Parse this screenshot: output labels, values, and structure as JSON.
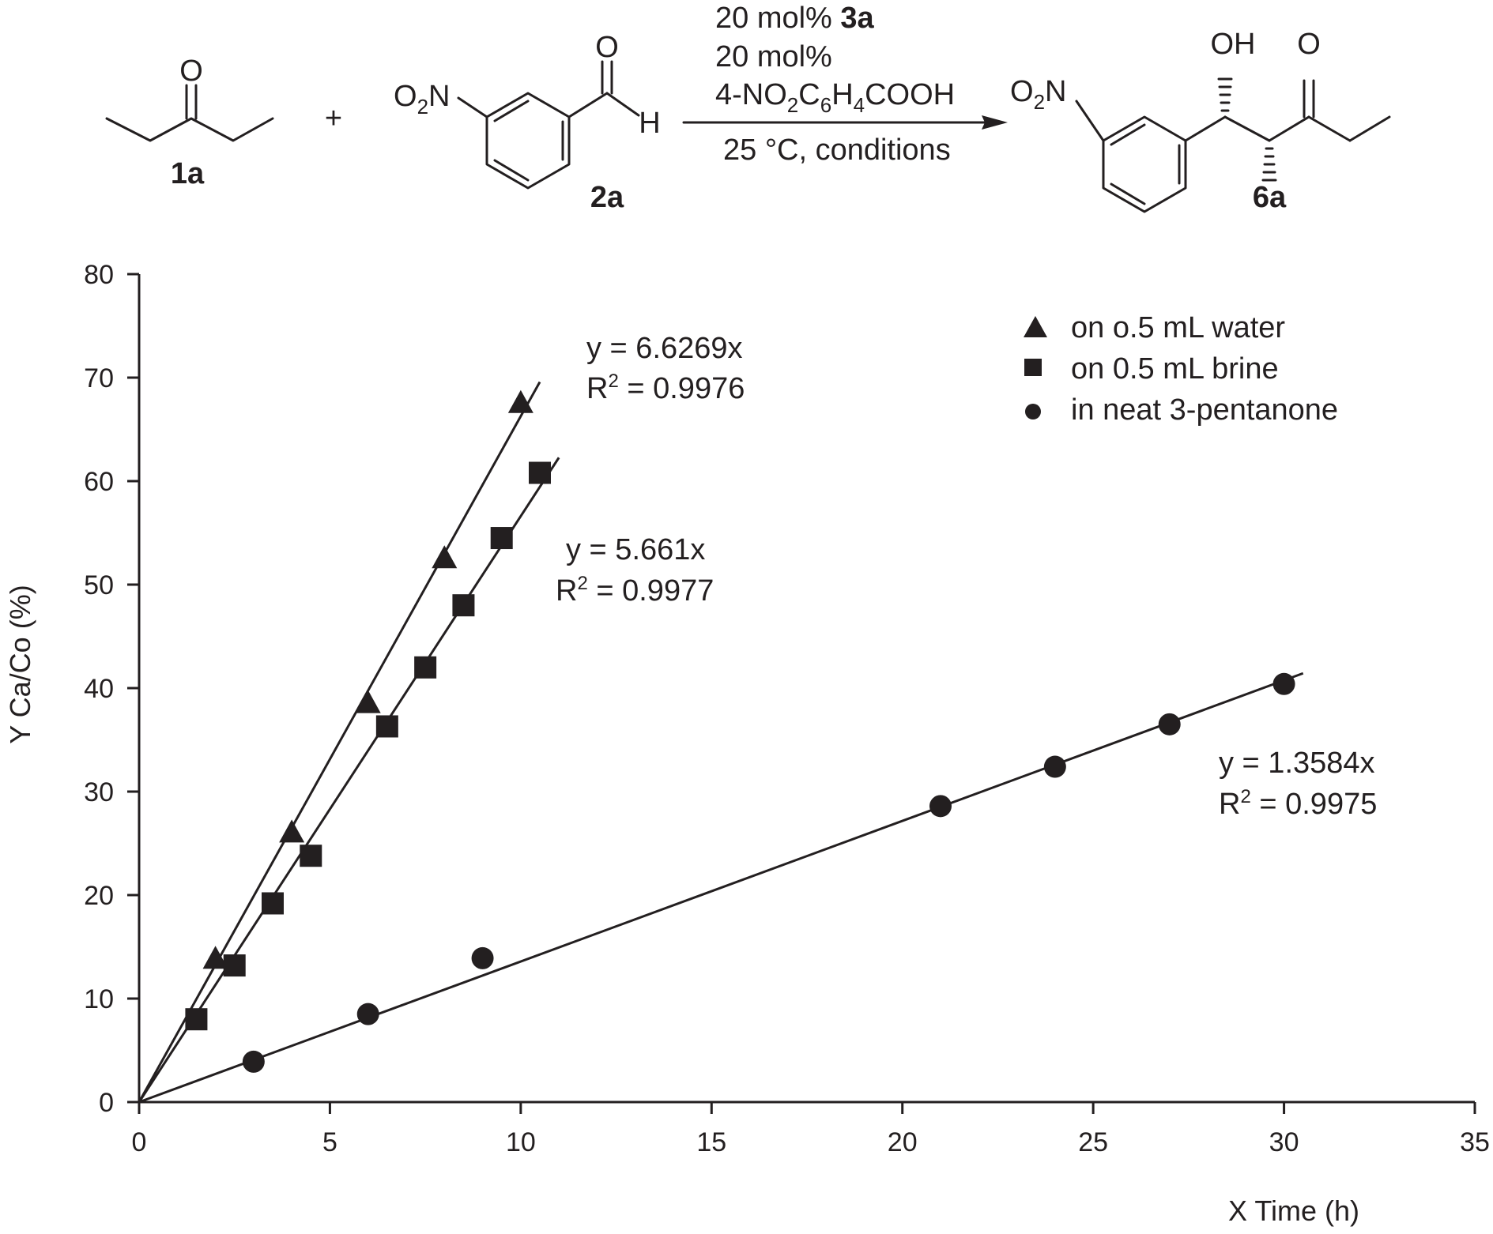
{
  "scheme": {
    "reactant1": {
      "carbonyl_atom": "O",
      "label": "1a"
    },
    "plus": "+",
    "reactant2": {
      "nitro": "O",
      "nitro_sub": "2",
      "nitro_n": "N",
      "carbonyl_atom": "O",
      "hydrogen": "H",
      "label": "2a"
    },
    "conditions": {
      "line1_prefix": "20 mol% ",
      "line1_bold": "3a",
      "line2": "20 mol%",
      "line3_parts": [
        "4-NO",
        "2",
        "C",
        "6",
        "H",
        "4",
        "COOH"
      ],
      "line4": "25 °C, conditions"
    },
    "product": {
      "nitro": "O",
      "nitro_sub": "2",
      "nitro_n": "N",
      "hydroxyl": "OH",
      "carbonyl_atom": "O",
      "label": "6a"
    }
  },
  "chart_data": {
    "type": "scatter",
    "xlabel": "X  Time (h)",
    "ylabel": "Y Ca/Co (%)",
    "xlim": [
      0,
      35
    ],
    "ylim": [
      0,
      80
    ],
    "xticks": [
      0,
      5,
      10,
      15,
      20,
      25,
      30,
      35
    ],
    "yticks": [
      0,
      10,
      20,
      30,
      40,
      50,
      60,
      70,
      80
    ],
    "grid": false,
    "legend_position": "top-right",
    "series": [
      {
        "name": "on o.5 mL water",
        "marker": "triangle",
        "color": "#231f20",
        "x": [
          2,
          4,
          6,
          8,
          10
        ],
        "y": [
          13.8,
          26.0,
          38.5,
          52.5,
          67.5
        ],
        "fit": {
          "slope": 6.6269,
          "x_end": 10.5,
          "equation": "y = 6.6269x",
          "r2_label": "R",
          "r2_sup": "2",
          "r2_value": " = 0.9976"
        }
      },
      {
        "name": "on 0.5 mL brine",
        "marker": "square",
        "color": "#231f20",
        "x": [
          1.5,
          2.5,
          3.5,
          4.5,
          6.5,
          7.5,
          8.5,
          9.5,
          10.5
        ],
        "y": [
          8.0,
          13.2,
          19.2,
          23.8,
          36.3,
          42.0,
          48.0,
          54.5,
          60.8
        ],
        "fit": {
          "slope": 5.661,
          "x_end": 11,
          "equation": "y = 5.661x",
          "r2_label": "R",
          "r2_sup": "2",
          "r2_value": " = 0.9977"
        }
      },
      {
        "name": "in neat 3-pentanone",
        "marker": "circle",
        "color": "#231f20",
        "x": [
          3,
          6,
          9,
          21,
          24,
          27,
          30
        ],
        "y": [
          3.9,
          8.5,
          13.9,
          28.6,
          32.4,
          36.5,
          40.4
        ],
        "fit": {
          "slope": 1.3584,
          "x_end": 30.5,
          "equation": "y = 1.3584x",
          "r2_label": "R",
          "r2_sup": "2",
          "r2_value": " = 0.9975"
        }
      }
    ]
  }
}
